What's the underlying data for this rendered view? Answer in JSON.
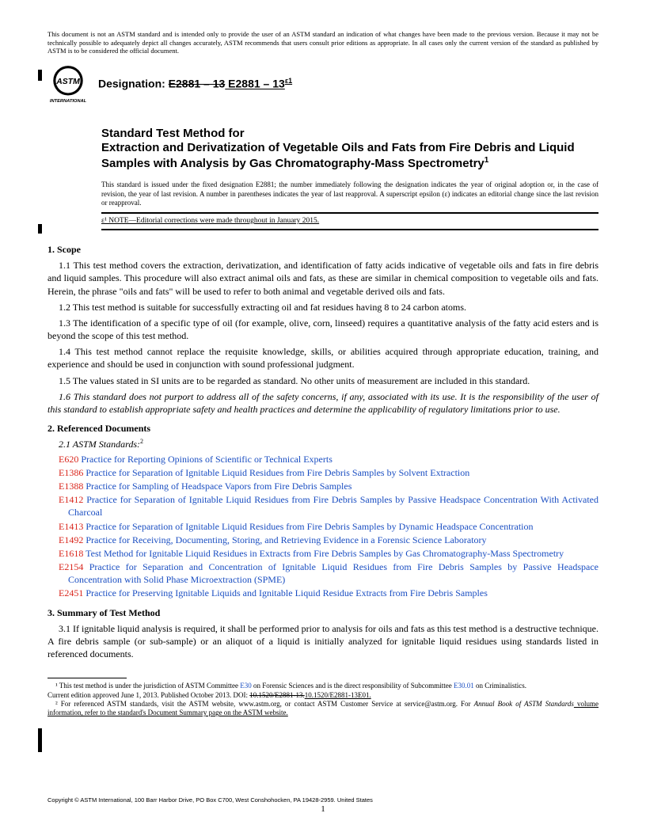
{
  "disclaimer": "This document is not an ASTM standard and is intended only to provide the user of an ASTM standard an indication of what changes have been made to the previous version. Because it may not be technically possible to adequately depict all changes accurately, ASTM recommends that users consult prior editions as appropriate. In all cases only the current version of the standard as published by ASTM is to be considered the official document.",
  "designation_label": "Designation: ",
  "designation_old": "E2881 – 13",
  "designation_new": " E2881 – 13",
  "designation_sup": "ε1",
  "logo_text": "INTERNATIONAL",
  "title_pre": "Standard Test Method for",
  "title_main": "Extraction and Derivatization of Vegetable Oils and Fats from Fire Debris and Liquid Samples with Analysis by Gas Chromatography-Mass Spectrometry",
  "title_sup": "1",
  "issued_note": "This standard is issued under the fixed designation E2881; the number immediately following the designation indicates the year of original adoption or, in the case of revision, the year of last revision. A number in parentheses indicates the year of last reapproval. A superscript epsilon (ε) indicates an editorial change since the last revision or reapproval.",
  "epsilon_note": "ε¹ NOTE—Editorial corrections were made throughout in January 2015.",
  "sections": {
    "scope_head": "1.  Scope",
    "scope": [
      "1.1 This test method covers the extraction, derivatization, and identification of fatty acids indicative of vegetable oils and fats in fire debris and liquid samples. This procedure will also extract animal oils and fats, as these are similar in chemical composition to vegetable oils and fats. Herein, the phrase \"oils and fats\" will be used to refer to both animal and vegetable derived oils and fats.",
      "1.2 This test method is suitable for successfully extracting oil and fat residues having 8 to 24 carbon atoms.",
      "1.3 The identification of a specific type of oil (for example, olive, corn, linseed) requires a quantitative analysis of the fatty acid esters and is beyond the scope of this test method.",
      "1.4 This test method cannot replace the requisite knowledge, skills, or abilities acquired through appropriate education, training, and experience and should be used in conjunction with sound professional judgment.",
      "1.5 The values stated in SI units are to be regarded as standard. No other units of measurement are included in this standard."
    ],
    "scope_italic": "1.6 This standard does not purport to address all of the safety concerns, if any, associated with its use. It is the responsibility of the user of this standard to establish appropriate safety and health practices and determine the applicability of regulatory limitations prior to use.",
    "ref_head": "2.  Referenced Documents",
    "ref_sub": "2.1 ASTM Standards:",
    "ref_sub_sup": "2",
    "refs": [
      {
        "code": "E620",
        "title": "Practice for Reporting Opinions of Scientific or Technical Experts"
      },
      {
        "code": "E1386",
        "title": "Practice for Separation of Ignitable Liquid Residues from Fire Debris Samples by Solvent Extraction"
      },
      {
        "code": "E1388",
        "title": "Practice for Sampling of Headspace Vapors from Fire Debris Samples"
      },
      {
        "code": "E1412",
        "title": "Practice for Separation of Ignitable Liquid Residues from Fire Debris Samples by Passive Headspace Concentration With Activated Charcoal"
      },
      {
        "code": "E1413",
        "title": "Practice for Separation of Ignitable Liquid Residues from Fire Debris Samples by Dynamic Headspace Concentration"
      },
      {
        "code": "E1492",
        "title": "Practice for Receiving, Documenting, Storing, and Retrieving Evidence in a Forensic Science Laboratory"
      },
      {
        "code": "E1618",
        "title": "Test Method for Ignitable Liquid Residues in Extracts from Fire Debris Samples by Gas Chromatography-Mass Spectrometry"
      },
      {
        "code": "E2154",
        "title": "Practice for Separation and Concentration of Ignitable Liquid Residues from Fire Debris Samples by Passive Headspace Concentration with Solid Phase Microextraction (SPME)"
      },
      {
        "code": "E2451",
        "title": "Practice for Preserving Ignitable Liquids and Ignitable Liquid Residue Extracts from Fire Debris Samples"
      }
    ],
    "summary_head": "3.  Summary of Test Method",
    "summary": "3.1 If ignitable liquid analysis is required, it shall be performed prior to analysis for oils and fats as this test method is a destructive technique. A fire debris sample (or sub-sample) or an aliquot of a liquid is initially analyzed for ignitable liquid residues using standards listed in referenced documents."
  },
  "footnotes": {
    "f1a": "¹ This test method is under the jurisdiction of ASTM Committee ",
    "f1b": "E30",
    "f1c": " on Forensic Sciences and is the direct responsibility of Subcommittee ",
    "f1d": "E30.01",
    "f1e": " on Criminalistics.",
    "f1_line2a": "Current edition approved June 1, 2013. Published October 2013. DOI: ",
    "f1_strike": "10.1520/E2881-13.",
    "f1_new": "10.1520/E2881-13E01.",
    "f2": "² For referenced ASTM standards, visit the ASTM website, www.astm.org, or contact ASTM Customer Service at service@astm.org. For ",
    "f2_italic": "Annual Book of ASTM Standards",
    "f2_end": " volume information, refer to the standard's Document Summary page on the ASTM website."
  },
  "copyright": "Copyright © ASTM International, 100 Barr Harbor Drive, PO Box C700, West Conshohocken, PA 19428-2959. United States",
  "pagenum": "1"
}
